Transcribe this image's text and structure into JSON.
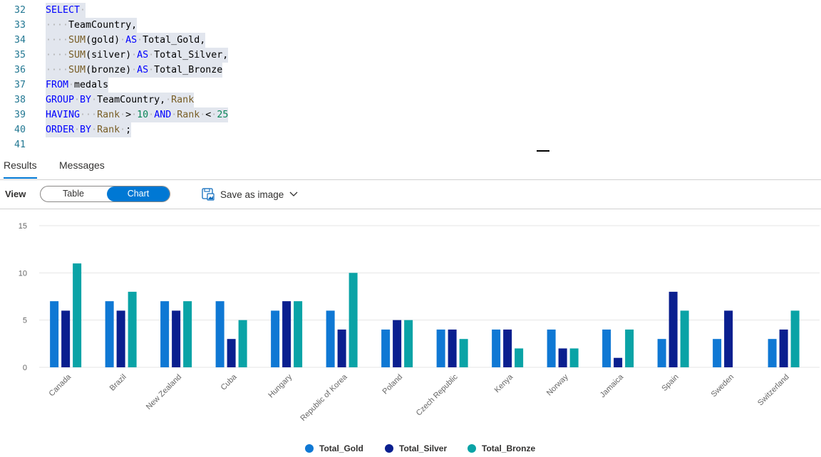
{
  "editor": {
    "lines": [
      {
        "n": "32",
        "tokens": [
          [
            "kw",
            "SELECT"
          ],
          [
            "dots",
            "·"
          ]
        ]
      },
      {
        "n": "33",
        "tokens": [
          [
            "dots",
            "····"
          ],
          [
            "plain",
            "TeamCountry,"
          ]
        ]
      },
      {
        "n": "34",
        "tokens": [
          [
            "dots",
            "····"
          ],
          [
            "fn",
            "SUM"
          ],
          [
            "plain",
            "(gold)"
          ],
          [
            "dots",
            "·"
          ],
          [
            "kw",
            "AS"
          ],
          [
            "dots",
            "·"
          ],
          [
            "plain",
            "Total_Gold,"
          ]
        ]
      },
      {
        "n": "35",
        "tokens": [
          [
            "dots",
            "····"
          ],
          [
            "fn",
            "SUM"
          ],
          [
            "plain",
            "(silver)"
          ],
          [
            "dots",
            "·"
          ],
          [
            "kw",
            "AS"
          ],
          [
            "dots",
            "·"
          ],
          [
            "plain",
            "Total_Silver,"
          ]
        ]
      },
      {
        "n": "36",
        "tokens": [
          [
            "dots",
            "····"
          ],
          [
            "fn",
            "SUM"
          ],
          [
            "plain",
            "(bronze)"
          ],
          [
            "dots",
            "·"
          ],
          [
            "kw",
            "AS"
          ],
          [
            "dots",
            "·"
          ],
          [
            "plain",
            "Total_Bronze"
          ]
        ]
      },
      {
        "n": "37",
        "tokens": [
          [
            "kw",
            "FROM"
          ],
          [
            "dots",
            "·"
          ],
          [
            "plain",
            "medals"
          ]
        ]
      },
      {
        "n": "38",
        "tokens": [
          [
            "kw",
            "GROUP"
          ],
          [
            "dots",
            "·"
          ],
          [
            "kw",
            "BY"
          ],
          [
            "dots",
            "·"
          ],
          [
            "plain",
            "TeamCountry,"
          ],
          [
            "dots",
            "·"
          ],
          [
            "fn",
            "Rank"
          ]
        ]
      },
      {
        "n": "39",
        "tokens": [
          [
            "kw",
            "HAVING"
          ],
          [
            "dots",
            "···"
          ],
          [
            "fn",
            "Rank"
          ],
          [
            "dots",
            "·"
          ],
          [
            "plain",
            ">"
          ],
          [
            "dots",
            "·"
          ],
          [
            "num",
            "10"
          ],
          [
            "dots",
            "·"
          ],
          [
            "kw",
            "AND"
          ],
          [
            "dots",
            "·"
          ],
          [
            "fn",
            "Rank"
          ],
          [
            "dots",
            "·"
          ],
          [
            "plain",
            "<"
          ],
          [
            "dots",
            "·"
          ],
          [
            "num",
            "25"
          ]
        ]
      },
      {
        "n": "40",
        "tokens": [
          [
            "kw",
            "ORDER"
          ],
          [
            "dots",
            "·"
          ],
          [
            "kw",
            "BY"
          ],
          [
            "dots",
            "·"
          ],
          [
            "fn",
            "Rank"
          ],
          [
            "dots",
            "·"
          ],
          [
            "plain",
            ";"
          ]
        ]
      },
      {
        "n": "41",
        "tokens": []
      }
    ]
  },
  "tabs": {
    "results": "Results",
    "messages": "Messages"
  },
  "toolbar": {
    "view_label": "View",
    "table_label": "Table",
    "chart_label": "Chart",
    "save_label": "Save as image"
  },
  "icons": {
    "save": "save-image-icon",
    "chevron": "chevron-down-icon"
  },
  "chart_data": {
    "type": "bar",
    "categories": [
      "Canada",
      "Brazil",
      "New Zealand",
      "Cuba",
      "Hungary",
      "Republic of Korea",
      "Poland",
      "Czech Republic",
      "Kenya",
      "Norway",
      "Jamaica",
      "Spain",
      "Sweden",
      "Switzerland"
    ],
    "series": [
      {
        "name": "Total_Gold",
        "color": "#0f78d4",
        "values": [
          7,
          7,
          7,
          7,
          6,
          6,
          4,
          4,
          4,
          4,
          4,
          3,
          3,
          3
        ]
      },
      {
        "name": "Total_Silver",
        "color": "#0a1f8f",
        "values": [
          6,
          6,
          6,
          3,
          7,
          4,
          5,
          4,
          4,
          2,
          1,
          8,
          6,
          4
        ]
      },
      {
        "name": "Total_Bronze",
        "color": "#0aa3a6",
        "values": [
          11,
          8,
          7,
          5,
          7,
          10,
          5,
          3,
          2,
          2,
          4,
          6,
          0,
          6
        ]
      }
    ],
    "yticks": [
      0,
      5,
      10,
      15
    ],
    "ylim": [
      0,
      15
    ],
    "grid": true,
    "legend": "bottom"
  }
}
